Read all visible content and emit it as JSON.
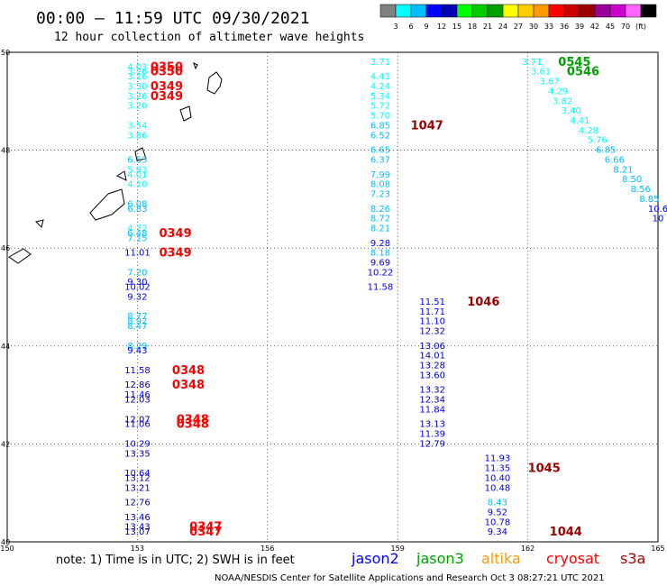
{
  "header": {
    "title": "00:00 — 11:59 UTC 09/30/2021",
    "subtitle": "12 hour collection of altimeter wave heights"
  },
  "colorbar": {
    "colors": [
      "#808080",
      "#00ffff",
      "#00bfff",
      "#0000ff",
      "#0000b0",
      "#00ff00",
      "#00cc00",
      "#00a000",
      "#ffff00",
      "#ffcc00",
      "#ff9900",
      "#ff0000",
      "#cc0000",
      "#990000",
      "#990099",
      "#cc00cc",
      "#ff66ff",
      "#000000"
    ],
    "labels": [
      "3",
      "6",
      "9",
      "12",
      "15",
      "18",
      "21",
      "24",
      "27",
      "30",
      "33",
      "36",
      "39",
      "42",
      "45",
      "70",
      "(ft)"
    ]
  },
  "footer": {
    "note": "note: 1) Time is in UTC; 2) SWH is in feet",
    "satellites": [
      {
        "name": "jason2",
        "color": "#0000ff"
      },
      {
        "name": "jason3",
        "color": "#00a000"
      },
      {
        "name": "altika",
        "color": "#ff9900"
      },
      {
        "name": "cryosat",
        "color": "#ff0000"
      },
      {
        "name": "s3a",
        "color": "#990000"
      }
    ],
    "credit": "NOAA/NESDIS Center for Satellite Applications and Research    Oct  3 08:27:21 UTC 2021"
  },
  "chart_data": {
    "type": "scatter",
    "xlim": [
      150,
      165
    ],
    "ylim": [
      40,
      50
    ],
    "x_ticks": [
      "150",
      "153",
      "156",
      "159",
      "162",
      "165"
    ],
    "y_ticks": [
      "40",
      "42",
      "44",
      "46",
      "48",
      "50"
    ],
    "grid": true,
    "tracks": [
      {
        "time": "0350",
        "time_color": "#ff0000",
        "time_labels": [
          {
            "t": "0350",
            "x": 153.3,
            "y": 49.7
          },
          {
            "t": "0350",
            "x": 153.3,
            "y": 49.6
          }
        ],
        "points": [
          {
            "x": 153.0,
            "y": 49.7,
            "v": "4.03"
          },
          {
            "x": 153.0,
            "y": 49.6,
            "v": "3.26"
          },
          {
            "x": 153.0,
            "y": 49.5,
            "v": "3.16"
          }
        ]
      },
      {
        "time": "0349",
        "time_color": "#ff0000",
        "time_labels": [
          {
            "t": "0349",
            "x": 153.3,
            "y": 49.3
          },
          {
            "t": "0349",
            "x": 153.3,
            "y": 49.1
          },
          {
            "t": "0349",
            "x": 153.5,
            "y": 46.3
          },
          {
            "t": "0349",
            "x": 153.5,
            "y": 45.9
          }
        ],
        "points": [
          {
            "x": 153.0,
            "y": 49.3,
            "v": "3.30"
          },
          {
            "x": 153.0,
            "y": 49.1,
            "v": "3.26"
          },
          {
            "x": 153.0,
            "y": 48.9,
            "v": "3.20"
          },
          {
            "x": 153.0,
            "y": 48.5,
            "v": "3.54"
          },
          {
            "x": 153.0,
            "y": 48.3,
            "v": "3.86"
          },
          {
            "x": 153.0,
            "y": 47.8,
            "v": "6.53"
          },
          {
            "x": 153.0,
            "y": 47.6,
            "v": "5.93"
          },
          {
            "x": 153.0,
            "y": 47.5,
            "v": "4.01"
          },
          {
            "x": 153.0,
            "y": 47.3,
            "v": "4.10"
          },
          {
            "x": 153.0,
            "y": 46.9,
            "v": "6.08"
          },
          {
            "x": 153.0,
            "y": 46.8,
            "v": "6.83"
          },
          {
            "x": 153.0,
            "y": 46.4,
            "v": "4.72"
          },
          {
            "x": 153.0,
            "y": 46.3,
            "v": "6.48"
          },
          {
            "x": 153.0,
            "y": 46.2,
            "v": "7.15"
          },
          {
            "x": 153.0,
            "y": 45.9,
            "v": "11.01"
          },
          {
            "x": 153.0,
            "y": 45.5,
            "v": "7.20"
          },
          {
            "x": 153.0,
            "y": 45.3,
            "v": "9.30"
          },
          {
            "x": 153.0,
            "y": 45.2,
            "v": "10.02"
          },
          {
            "x": 153.0,
            "y": 45.0,
            "v": "9.32"
          },
          {
            "x": 153.0,
            "y": 44.6,
            "v": "8.77"
          },
          {
            "x": 153.0,
            "y": 44.5,
            "v": "8.92"
          },
          {
            "x": 153.0,
            "y": 44.4,
            "v": "8.47"
          },
          {
            "x": 153.0,
            "y": 44.0,
            "v": "8.29"
          },
          {
            "x": 153.0,
            "y": 43.9,
            "v": "9.43"
          }
        ]
      },
      {
        "time": "0348",
        "time_color": "#ff0000",
        "time_labels": [
          {
            "t": "0348",
            "x": 153.8,
            "y": 43.5
          },
          {
            "t": "0348",
            "x": 153.8,
            "y": 43.2
          },
          {
            "t": "0348",
            "x": 153.9,
            "y": 42.5
          },
          {
            "t": "0348",
            "x": 153.9,
            "y": 42.4
          }
        ],
        "points": [
          {
            "x": 153.0,
            "y": 43.5,
            "v": "11.58"
          },
          {
            "x": 153.0,
            "y": 43.2,
            "v": "12.86"
          },
          {
            "x": 153.0,
            "y": 43.0,
            "v": "11.46"
          },
          {
            "x": 153.0,
            "y": 42.9,
            "v": "12.03"
          },
          {
            "x": 153.0,
            "y": 42.5,
            "v": "12.07"
          },
          {
            "x": 153.0,
            "y": 42.4,
            "v": "11.06"
          },
          {
            "x": 153.0,
            "y": 42.0,
            "v": "10.29"
          },
          {
            "x": 153.0,
            "y": 41.8,
            "v": "13.35"
          },
          {
            "x": 153.0,
            "y": 41.4,
            "v": "10.64"
          },
          {
            "x": 153.0,
            "y": 41.3,
            "v": "13.12"
          },
          {
            "x": 153.0,
            "y": 41.1,
            "v": "13.21"
          },
          {
            "x": 153.0,
            "y": 40.8,
            "v": "12.76"
          }
        ]
      },
      {
        "time": "0347",
        "time_color": "#ff0000",
        "time_labels": [
          {
            "t": "0347",
            "x": 154.2,
            "y": 40.3
          },
          {
            "t": "0347",
            "x": 154.2,
            "y": 40.2
          }
        ],
        "points": [
          {
            "x": 153.0,
            "y": 40.5,
            "v": "13.46"
          },
          {
            "x": 153.0,
            "y": 40.3,
            "v": "13.43"
          },
          {
            "x": 153.0,
            "y": 40.2,
            "v": "13.07"
          }
        ]
      },
      {
        "time": "1047",
        "time_color": "#990000",
        "time_labels": [
          {
            "t": "1047",
            "x": 159.3,
            "y": 48.5
          }
        ],
        "points": [
          {
            "x": 158.6,
            "y": 49.8,
            "v": "3.71"
          },
          {
            "x": 158.6,
            "y": 49.5,
            "v": "4.41"
          },
          {
            "x": 158.6,
            "y": 49.3,
            "v": "4.24"
          },
          {
            "x": 158.6,
            "y": 49.1,
            "v": "5.34"
          },
          {
            "x": 158.6,
            "y": 48.9,
            "v": "5.72"
          },
          {
            "x": 158.6,
            "y": 48.7,
            "v": "5.70"
          },
          {
            "x": 158.6,
            "y": 48.5,
            "v": "6.85"
          },
          {
            "x": 158.6,
            "y": 48.3,
            "v": "6.52"
          },
          {
            "x": 158.6,
            "y": 48.0,
            "v": "6.65"
          },
          {
            "x": 158.6,
            "y": 47.8,
            "v": "6.37"
          },
          {
            "x": 158.6,
            "y": 47.5,
            "v": "7.99"
          },
          {
            "x": 158.6,
            "y": 47.3,
            "v": "8.08"
          },
          {
            "x": 158.6,
            "y": 47.1,
            "v": "7.23"
          },
          {
            "x": 158.6,
            "y": 46.8,
            "v": "8.26"
          },
          {
            "x": 158.6,
            "y": 46.6,
            "v": "8.72"
          },
          {
            "x": 158.6,
            "y": 46.4,
            "v": "8.21"
          },
          {
            "x": 158.6,
            "y": 46.1,
            "v": "9.28"
          },
          {
            "x": 158.6,
            "y": 45.9,
            "v": "8.18"
          },
          {
            "x": 158.6,
            "y": 45.7,
            "v": "9.69"
          },
          {
            "x": 158.6,
            "y": 45.5,
            "v": "10.22"
          },
          {
            "x": 158.6,
            "y": 45.2,
            "v": "11.58"
          }
        ]
      },
      {
        "time": "1046",
        "time_color": "#990000",
        "time_labels": [
          {
            "t": "1046",
            "x": 160.6,
            "y": 44.9
          }
        ],
        "points": [
          {
            "x": 159.8,
            "y": 44.9,
            "v": "11.51"
          },
          {
            "x": 159.8,
            "y": 44.7,
            "v": "11.71"
          },
          {
            "x": 159.8,
            "y": 44.5,
            "v": "11.10"
          },
          {
            "x": 159.8,
            "y": 44.3,
            "v": "12.32"
          },
          {
            "x": 159.8,
            "y": 44.0,
            "v": "13.06"
          },
          {
            "x": 159.8,
            "y": 43.8,
            "v": "14.01"
          },
          {
            "x": 159.8,
            "y": 43.6,
            "v": "13.28"
          },
          {
            "x": 159.8,
            "y": 43.4,
            "v": "13.60"
          },
          {
            "x": 159.8,
            "y": 43.1,
            "v": "13.32"
          },
          {
            "x": 159.8,
            "y": 42.9,
            "v": "12.34"
          },
          {
            "x": 159.8,
            "y": 42.7,
            "v": "11.84"
          },
          {
            "x": 159.8,
            "y": 42.4,
            "v": "13.13"
          },
          {
            "x": 159.8,
            "y": 42.2,
            "v": "11.39"
          },
          {
            "x": 159.8,
            "y": 42.0,
            "v": "12.79"
          }
        ]
      },
      {
        "time": "1045",
        "time_color": "#990000",
        "time_labels": [
          {
            "t": "1045",
            "x": 162.0,
            "y": 41.5
          }
        ],
        "points": [
          {
            "x": 161.3,
            "y": 41.7,
            "v": "11.93"
          },
          {
            "x": 161.3,
            "y": 41.5,
            "v": "11.35"
          },
          {
            "x": 161.3,
            "y": 41.3,
            "v": "10.40"
          },
          {
            "x": 161.3,
            "y": 41.1,
            "v": "10.48"
          },
          {
            "x": 161.3,
            "y": 40.8,
            "v": "8.43"
          },
          {
            "x": 161.3,
            "y": 40.6,
            "v": "9.52"
          },
          {
            "x": 161.3,
            "y": 40.4,
            "v": "10.78"
          },
          {
            "x": 161.3,
            "y": 40.2,
            "v": "9.34"
          }
        ]
      },
      {
        "time": "1044",
        "time_color": "#990000",
        "time_labels": [
          {
            "t": "1044",
            "x": 162.5,
            "y": 40.2
          }
        ],
        "points": []
      },
      {
        "time": "0545",
        "time_color": "#00a000",
        "time_labels": [
          {
            "t": "0545",
            "x": 162.7,
            "y": 49.8
          },
          {
            "t": "0546",
            "x": 162.9,
            "y": 49.6
          }
        ],
        "points": [
          {
            "x": 162.1,
            "y": 49.8,
            "v": "3.71"
          },
          {
            "x": 162.3,
            "y": 49.6,
            "v": "3.61"
          },
          {
            "x": 162.5,
            "y": 49.4,
            "v": "3.67"
          },
          {
            "x": 162.7,
            "y": 49.2,
            "v": "4.29"
          },
          {
            "x": 162.8,
            "y": 49.0,
            "v": "3.82"
          },
          {
            "x": 163.0,
            "y": 48.8,
            "v": "3.40"
          },
          {
            "x": 163.2,
            "y": 48.6,
            "v": "4.41"
          },
          {
            "x": 163.4,
            "y": 48.4,
            "v": "4.28"
          },
          {
            "x": 163.6,
            "y": 48.2,
            "v": "5.76"
          },
          {
            "x": 163.8,
            "y": 48.0,
            "v": "6.85"
          },
          {
            "x": 164.0,
            "y": 47.8,
            "v": "6.66"
          },
          {
            "x": 164.2,
            "y": 47.6,
            "v": "8.21"
          },
          {
            "x": 164.4,
            "y": 47.4,
            "v": "8.50"
          },
          {
            "x": 164.6,
            "y": 47.2,
            "v": "8.56"
          },
          {
            "x": 164.8,
            "y": 47.0,
            "v": "8.85"
          },
          {
            "x": 165.0,
            "y": 46.8,
            "v": "10.6"
          },
          {
            "x": 165.0,
            "y": 46.6,
            "v": "10"
          }
        ]
      }
    ]
  }
}
